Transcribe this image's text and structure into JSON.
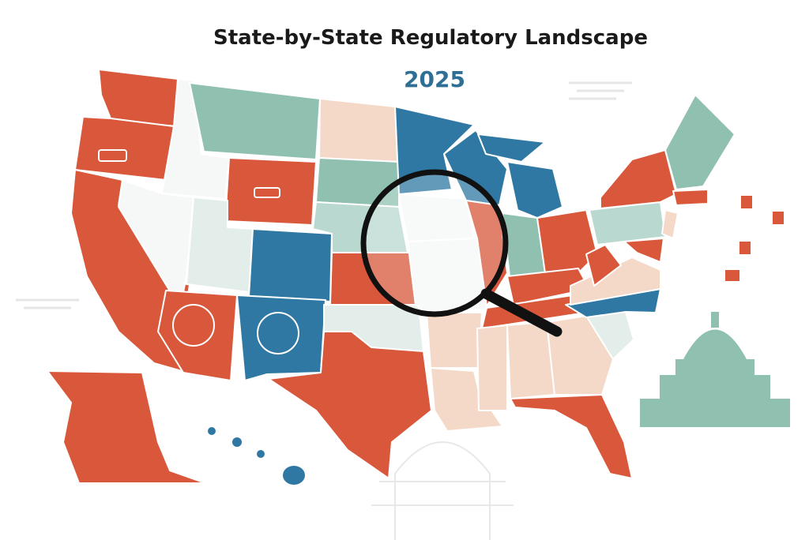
{
  "header": {
    "title": "State-by-State Regulatory Landscape",
    "year": "2025"
  }
}
